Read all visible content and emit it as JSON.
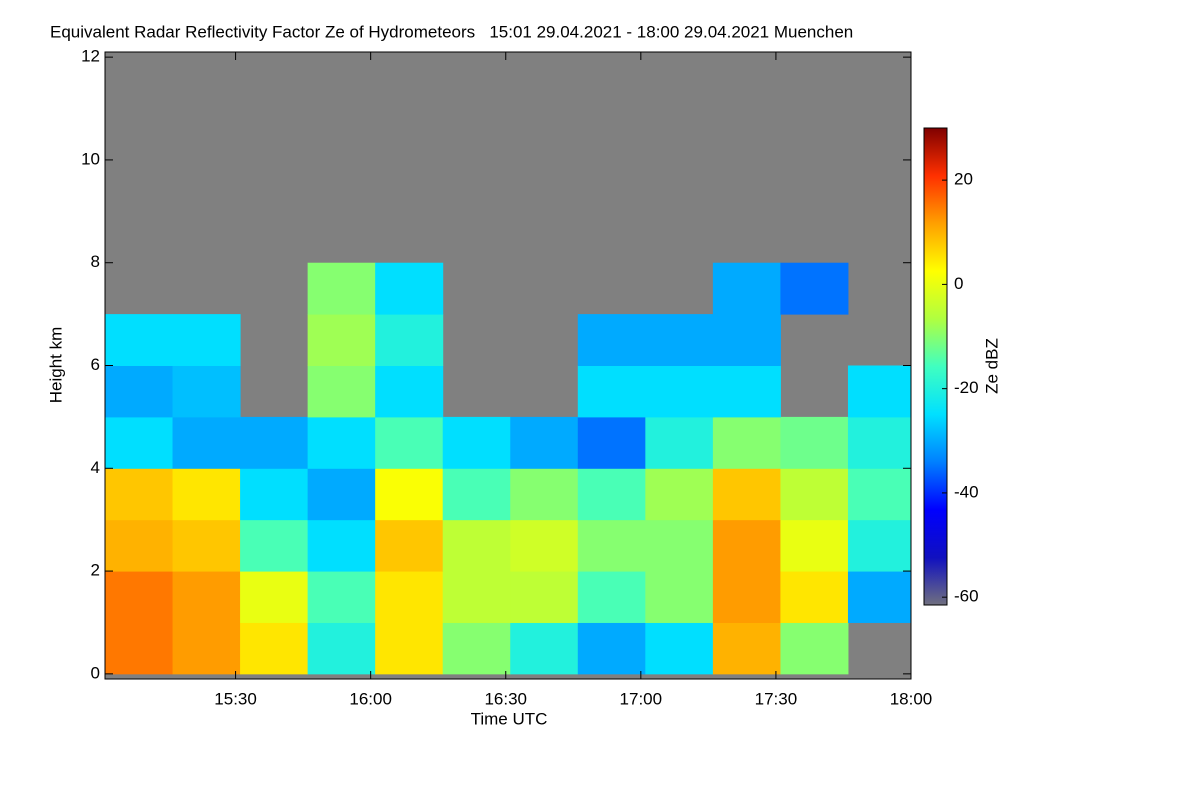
{
  "chart_data": {
    "type": "heatmap",
    "title": "Equivalent Radar Reflectivity Factor Ze of Hydrometeors   15:01 29.04.2021 - 18:00 29.04.2021 Muenchen",
    "x_label": "Time UTC",
    "y_label": "Height km",
    "colorbar_label": "Ze dBZ",
    "xlim": [
      901,
      1080
    ],
    "xticks": [
      {
        "value": 930,
        "label": "15:30"
      },
      {
        "value": 960,
        "label": "16:00"
      },
      {
        "value": 990,
        "label": "16:30"
      },
      {
        "value": 1020,
        "label": "17:00"
      },
      {
        "value": 1050,
        "label": "17:30"
      },
      {
        "value": 1080,
        "label": "18:00"
      }
    ],
    "ylim": [
      -0.1,
      12.1
    ],
    "yticks": [
      0,
      2,
      4,
      6,
      8,
      10,
      12
    ],
    "zlim": [
      -61.5,
      30
    ],
    "zticks": [
      -60,
      -40,
      -20,
      0,
      20
    ],
    "colormap": [
      "#707080",
      "#1010c0",
      "#0000ff",
      "#0080ff",
      "#00e0ff",
      "#40ffc0",
      "#b0ff40",
      "#ffff00",
      "#ffa000",
      "#ff3000",
      "#800000"
    ],
    "nodata_color": "#808080",
    "xbins": [
      901,
      916,
      931,
      946,
      961,
      976,
      991,
      1006,
      1021,
      1036,
      1051,
      1066,
      1080
    ],
    "ybins": [
      0,
      1,
      2,
      3,
      4,
      5,
      6,
      7,
      8,
      9,
      10,
      11,
      12
    ],
    "z": [
      [
        15,
        12,
        5,
        -20,
        5,
        -10,
        -20,
        -30,
        -25,
        10,
        -10,
        null
      ],
      [
        15,
        12,
        0,
        -15,
        5,
        -5,
        -5,
        -15,
        -10,
        12,
        5,
        -30
      ],
      [
        10,
        8,
        -15,
        -25,
        8,
        -5,
        -3,
        -10,
        -10,
        12,
        0,
        -20
      ],
      [
        8,
        5,
        -25,
        -30,
        2,
        -15,
        -10,
        -15,
        -8,
        8,
        -5,
        -15
      ],
      [
        -25,
        -30,
        -30,
        -25,
        -15,
        -25,
        -30,
        -35,
        -20,
        -10,
        -12,
        -20
      ],
      [
        -30,
        -28,
        null,
        -10,
        -25,
        null,
        null,
        -25,
        -25,
        -25,
        null,
        -25
      ],
      [
        -25,
        -25,
        null,
        -8,
        -20,
        null,
        null,
        -30,
        -30,
        -30,
        null,
        null
      ],
      [
        null,
        null,
        null,
        -10,
        -25,
        null,
        null,
        null,
        null,
        -30,
        -35,
        null
      ],
      [
        null,
        null,
        null,
        null,
        null,
        null,
        null,
        null,
        null,
        null,
        null,
        null
      ],
      [
        null,
        null,
        null,
        null,
        null,
        null,
        null,
        null,
        null,
        null,
        null,
        null
      ],
      [
        null,
        null,
        null,
        null,
        null,
        null,
        null,
        null,
        null,
        null,
        null,
        null
      ],
      [
        null,
        null,
        null,
        null,
        null,
        null,
        null,
        null,
        null,
        null,
        null,
        null
      ]
    ]
  }
}
